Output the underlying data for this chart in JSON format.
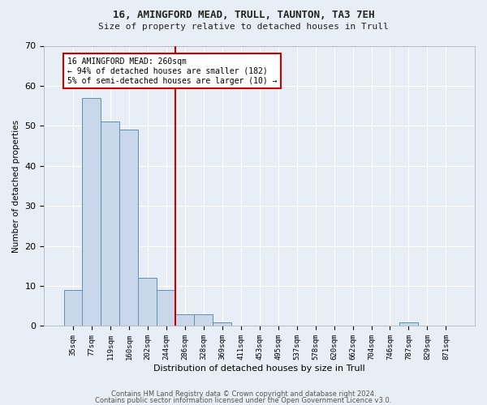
{
  "title1": "16, AMINGFORD MEAD, TRULL, TAUNTON, TA3 7EH",
  "title2": "Size of property relative to detached houses in Trull",
  "xlabel": "Distribution of detached houses by size in Trull",
  "ylabel": "Number of detached properties",
  "bar_labels": [
    "35sqm",
    "77sqm",
    "119sqm",
    "160sqm",
    "202sqm",
    "244sqm",
    "286sqm",
    "328sqm",
    "369sqm",
    "411sqm",
    "453sqm",
    "495sqm",
    "537sqm",
    "578sqm",
    "620sqm",
    "662sqm",
    "704sqm",
    "746sqm",
    "787sqm",
    "829sqm",
    "871sqm"
  ],
  "bar_values": [
    9,
    57,
    51,
    49,
    12,
    9,
    3,
    3,
    1,
    0,
    0,
    0,
    0,
    0,
    0,
    0,
    0,
    0,
    1,
    0,
    0
  ],
  "bar_color": "#c8d8ea",
  "bar_edge_color": "#6090b0",
  "vline_x_idx": 5.5,
  "vline_color": "#cc0000",
  "annotation_lines": [
    "16 AMINGFORD MEAD: 260sqm",
    "← 94% of detached houses are smaller (182)",
    "5% of semi-detached houses are larger (10) →"
  ],
  "ylim": [
    0,
    70
  ],
  "yticks": [
    0,
    10,
    20,
    30,
    40,
    50,
    60,
    70
  ],
  "background_color": "#e8eef5",
  "footer1": "Contains HM Land Registry data © Crown copyright and database right 2024.",
  "footer2": "Contains public sector information licensed under the Open Government Licence v3.0."
}
